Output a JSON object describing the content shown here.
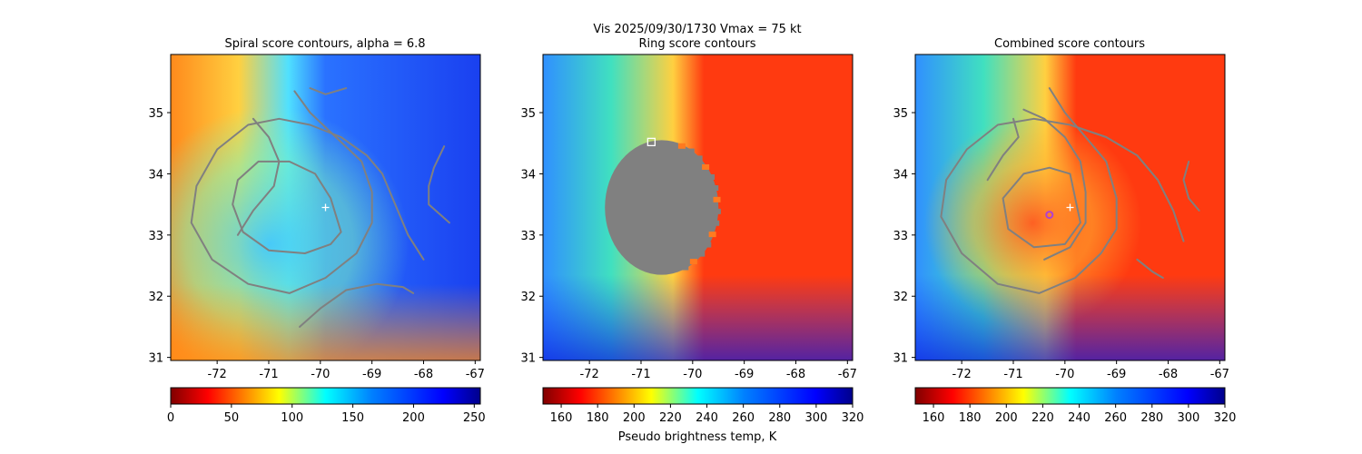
{
  "suptitle": {
    "line1": "Vis  2025/09/30/1730    Vmax = 75 kt",
    "line2": "Ring score contours"
  },
  "colors": {
    "contour": "#808080",
    "marker": "#ffffff",
    "mask": "#808080",
    "combined_marker": "#b040d0"
  },
  "chart_data": [
    {
      "type": "heatmap",
      "title": "Spiral score contours, alpha =  6.8",
      "xlim": [
        -72.9,
        -66.9
      ],
      "ylim": [
        30.95,
        35.95
      ],
      "xticks": [
        "-72",
        "-71",
        "-70",
        "-69",
        "-68",
        "-67"
      ],
      "xtick_values": [
        -72,
        -71,
        -70,
        -69,
        -68,
        -67
      ],
      "yticks": [
        "31",
        "32",
        "33",
        "34",
        "35"
      ],
      "ytick_values": [
        31,
        32,
        33,
        34,
        35
      ],
      "colorbar": {
        "cmap": "jet",
        "range": [
          0,
          255
        ],
        "ticks": [
          "0",
          "50",
          "100",
          "150",
          "200",
          "250"
        ],
        "tick_values": [
          0,
          50,
          100,
          150,
          200,
          250
        ],
        "label": ""
      },
      "center_marker": {
        "lon": -69.9,
        "lat": 33.45,
        "symbol": "+"
      },
      "contours": [
        [
          [
            -70.5,
            35.35
          ],
          [
            -70.2,
            35.0
          ],
          [
            -69.7,
            34.6
          ],
          [
            -69.2,
            34.2
          ],
          [
            -69.0,
            33.7
          ],
          [
            -69.0,
            33.2
          ],
          [
            -69.3,
            32.7
          ],
          [
            -69.9,
            32.3
          ],
          [
            -70.6,
            32.05
          ],
          [
            -71.4,
            32.2
          ],
          [
            -72.1,
            32.6
          ],
          [
            -72.5,
            33.2
          ],
          [
            -72.4,
            33.8
          ],
          [
            -72.0,
            34.4
          ],
          [
            -71.4,
            34.8
          ],
          [
            -70.8,
            34.9
          ],
          [
            -70.2,
            34.8
          ],
          [
            -69.6,
            34.6
          ],
          [
            -69.1,
            34.3
          ],
          [
            -68.8,
            34.0
          ],
          [
            -68.6,
            33.6
          ],
          [
            -68.3,
            33.0
          ],
          [
            -68.0,
            32.6
          ]
        ],
        [
          [
            -69.6,
            33.05
          ],
          [
            -69.8,
            33.6
          ],
          [
            -70.1,
            34.0
          ],
          [
            -70.6,
            34.2
          ],
          [
            -71.2,
            34.2
          ],
          [
            -71.6,
            33.9
          ],
          [
            -71.7,
            33.5
          ],
          [
            -71.5,
            33.05
          ],
          [
            -71.0,
            32.75
          ],
          [
            -70.3,
            32.7
          ],
          [
            -69.8,
            32.85
          ],
          [
            -69.6,
            33.05
          ]
        ],
        [
          [
            -71.3,
            34.9
          ],
          [
            -71.0,
            34.6
          ],
          [
            -70.8,
            34.2
          ],
          [
            -70.9,
            33.8
          ],
          [
            -71.3,
            33.4
          ],
          [
            -71.6,
            33.0
          ]
        ],
        [
          [
            -70.2,
            35.4
          ],
          [
            -69.9,
            35.3
          ],
          [
            -69.5,
            35.4
          ]
        ],
        [
          [
            -67.6,
            34.45
          ],
          [
            -67.8,
            34.1
          ],
          [
            -67.9,
            33.8
          ],
          [
            -67.9,
            33.5
          ],
          [
            -67.5,
            33.2
          ]
        ],
        [
          [
            -70.4,
            31.5
          ],
          [
            -70.0,
            31.8
          ],
          [
            -69.5,
            32.1
          ],
          [
            -68.9,
            32.2
          ],
          [
            -68.4,
            32.15
          ],
          [
            -68.2,
            32.05
          ]
        ]
      ]
    },
    {
      "type": "heatmap",
      "title": "Ring score contours",
      "xlim": [
        -72.9,
        -66.9
      ],
      "ylim": [
        30.95,
        35.95
      ],
      "xticks": [
        "-72",
        "-71",
        "-70",
        "-69",
        "-68",
        "-67"
      ],
      "xtick_values": [
        -72,
        -71,
        -70,
        -69,
        -68,
        -67
      ],
      "yticks": [
        "31",
        "32",
        "33",
        "34",
        "35"
      ],
      "ytick_values": [
        31,
        32,
        33,
        34,
        35
      ],
      "colorbar": {
        "cmap": "jet_r",
        "range": [
          150,
          320
        ],
        "ticks": [
          "160",
          "180",
          "200",
          "220",
          "240",
          "260",
          "280",
          "300",
          "320"
        ],
        "tick_values": [
          160,
          180,
          200,
          220,
          240,
          260,
          280,
          300,
          320
        ],
        "label": "Pseudo brightness temp, K"
      },
      "ring_mask": {
        "lon": -70.6,
        "lat": 33.45,
        "radius_deg": 1.1
      },
      "square_marker": {
        "lon": -70.8,
        "lat": 34.52
      },
      "contours": []
    },
    {
      "type": "heatmap",
      "title": "Combined score contours",
      "xlim": [
        -72.9,
        -66.9
      ],
      "ylim": [
        30.95,
        35.95
      ],
      "xticks": [
        "-72",
        "-71",
        "-70",
        "-69",
        "-68",
        "-67"
      ],
      "xtick_values": [
        -72,
        -71,
        -70,
        -69,
        -68,
        -67
      ],
      "yticks": [
        "31",
        "32",
        "33",
        "34",
        "35"
      ],
      "ytick_values": [
        31,
        32,
        33,
        34,
        35
      ],
      "colorbar": {
        "cmap": "jet_r",
        "range": [
          150,
          320
        ],
        "ticks": [
          "160",
          "180",
          "200",
          "220",
          "240",
          "260",
          "280",
          "300",
          "320"
        ],
        "tick_values": [
          160,
          180,
          200,
          220,
          240,
          260,
          280,
          300,
          320
        ],
        "label": ""
      },
      "center_marker": {
        "lon": -69.9,
        "lat": 33.45,
        "symbol": "+"
      },
      "best_marker": {
        "lon": -70.3,
        "lat": 33.33
      },
      "contours": [
        [
          [
            -70.3,
            35.4
          ],
          [
            -70.0,
            35.0
          ],
          [
            -69.6,
            34.6
          ],
          [
            -69.2,
            34.2
          ],
          [
            -69.0,
            33.6
          ],
          [
            -69.0,
            33.1
          ],
          [
            -69.3,
            32.7
          ],
          [
            -69.8,
            32.3
          ],
          [
            -70.5,
            32.05
          ],
          [
            -71.3,
            32.2
          ],
          [
            -72.0,
            32.7
          ],
          [
            -72.4,
            33.3
          ],
          [
            -72.3,
            33.9
          ],
          [
            -71.9,
            34.4
          ],
          [
            -71.3,
            34.8
          ],
          [
            -70.6,
            34.9
          ],
          [
            -69.9,
            34.8
          ],
          [
            -69.2,
            34.6
          ],
          [
            -68.6,
            34.3
          ],
          [
            -68.2,
            33.9
          ],
          [
            -67.9,
            33.4
          ],
          [
            -67.7,
            32.9
          ]
        ],
        [
          [
            -69.8,
            33.6
          ],
          [
            -69.9,
            34.0
          ],
          [
            -70.3,
            34.1
          ],
          [
            -70.8,
            34.0
          ],
          [
            -71.2,
            33.6
          ],
          [
            -71.1,
            33.1
          ],
          [
            -70.6,
            32.8
          ],
          [
            -70.0,
            32.85
          ],
          [
            -69.7,
            33.2
          ],
          [
            -69.8,
            33.6
          ]
        ],
        [
          [
            -70.8,
            35.05
          ],
          [
            -70.4,
            34.9
          ],
          [
            -70.0,
            34.6
          ],
          [
            -69.7,
            34.2
          ],
          [
            -69.6,
            33.7
          ],
          [
            -69.6,
            33.2
          ],
          [
            -69.9,
            32.8
          ],
          [
            -70.4,
            32.6
          ]
        ],
        [
          [
            -71.0,
            34.9
          ],
          [
            -70.9,
            34.6
          ],
          [
            -71.2,
            34.3
          ],
          [
            -71.5,
            33.9
          ]
        ],
        [
          [
            -67.6,
            34.2
          ],
          [
            -67.7,
            33.9
          ],
          [
            -67.6,
            33.6
          ],
          [
            -67.4,
            33.4
          ]
        ],
        [
          [
            -68.6,
            32.6
          ],
          [
            -68.3,
            32.4
          ],
          [
            -68.1,
            32.3
          ]
        ]
      ]
    }
  ]
}
